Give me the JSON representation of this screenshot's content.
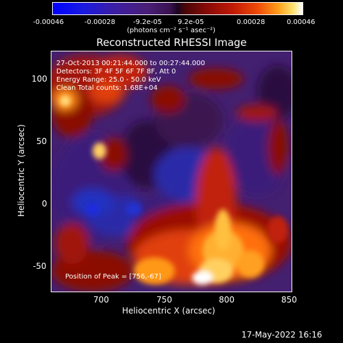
{
  "colorbar": {
    "ticks": [
      "-0.00046",
      "-0.00028",
      "-9.2e-05",
      "9.2e-05",
      "0.00028",
      "0.00046"
    ],
    "unit": "(photons cm⁻² s⁻¹ asec⁻²)"
  },
  "title": "Reconstructed RHESSI Image",
  "annotations": {
    "time_range": "27-Oct-2013 00:21:44.000 to 00:27:44.000",
    "detectors": "Detectors: 3F 4F 5F 6F 7F 8F, Att 0",
    "energy": "Energy Range: 25.0 - 50.0 keV",
    "clean": "Clean     Total counts: 1.68E+04",
    "peak": "Position of Peak = [756,-67]"
  },
  "axes": {
    "xlabel": "Heliocentric X (arcsec)",
    "ylabel": "Heliocentric Y (arcsec)",
    "xticks": [
      "700",
      "750",
      "800",
      "850"
    ],
    "yticks": [
      "100",
      "50",
      "0",
      "-50"
    ]
  },
  "footer": "17-May-2022 16:16"
}
